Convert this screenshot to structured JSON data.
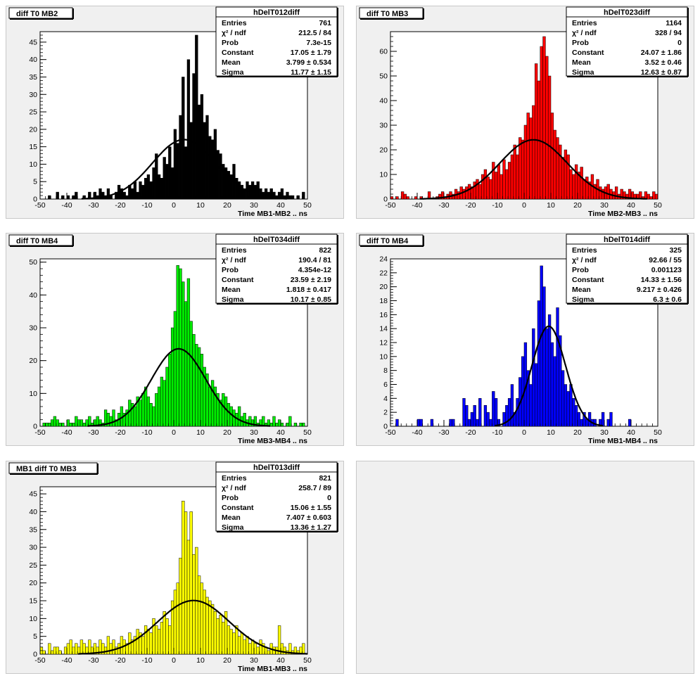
{
  "chart_data": [
    {
      "type": "bar",
      "pad_title": "diff T0 MB2",
      "stats_title": "hDelT012diff",
      "stats": [
        {
          "label": "Entries",
          "value": "761"
        },
        {
          "label": "χ² / ndf",
          "value": "212.5 / 84"
        },
        {
          "label": "Prob",
          "value": "7.3e-15"
        },
        {
          "label": "Constant",
          "value": "17.05 ± 1.79"
        },
        {
          "label": "Mean",
          "value": "3.799 ± 0.534"
        },
        {
          "label": "Sigma",
          "value": "11.77 ± 1.15"
        }
      ],
      "xlabel": "Time MB1-MB2  ..  ns",
      "xlim": [
        -50,
        50
      ],
      "ylim": [
        0,
        48
      ],
      "yticks": [
        0,
        5,
        10,
        15,
        20,
        25,
        30,
        35,
        40,
        45
      ],
      "xticks": [
        -50,
        -40,
        -30,
        -20,
        -10,
        0,
        10,
        20,
        30,
        40,
        50
      ],
      "color": "#000000",
      "fit": {
        "constant": 17.05,
        "mean": 3.799,
        "sigma": 11.77
      },
      "bin_width": 1,
      "values": [
        0,
        0,
        0,
        1,
        0,
        0,
        2,
        0,
        1,
        0,
        1,
        0,
        1,
        2,
        0,
        0,
        1,
        0,
        2,
        0,
        2,
        1,
        3,
        2,
        1,
        3,
        1,
        0,
        2,
        4,
        3,
        2,
        1,
        4,
        3,
        5,
        2,
        5,
        4,
        6,
        7,
        5,
        9,
        13,
        7,
        6,
        12,
        10,
        15,
        9,
        20,
        16,
        24,
        35,
        15,
        40,
        22,
        36,
        47,
        27,
        30,
        22,
        24,
        18,
        17,
        20,
        14,
        13,
        10,
        9,
        8,
        7,
        10,
        6,
        5,
        4,
        3,
        5,
        4,
        5,
        4,
        5,
        3,
        2,
        3,
        2,
        3,
        2,
        1,
        2,
        3,
        1,
        2,
        1,
        1,
        0,
        1,
        0,
        2,
        0
      ]
    },
    {
      "type": "bar",
      "pad_title": "diff T0 MB3",
      "stats_title": "hDelT023diff",
      "stats": [
        {
          "label": "Entries",
          "value": "1164"
        },
        {
          "label": "χ² / ndf",
          "value": "328 / 94"
        },
        {
          "label": "Prob",
          "value": "0"
        },
        {
          "label": "Constant",
          "value": "24.07 ± 1.86"
        },
        {
          "label": "Mean",
          "value": "3.52 ± 0.46"
        },
        {
          "label": "Sigma",
          "value": "12.63 ± 0.87"
        }
      ],
      "xlabel": "Time MB2-MB3  ..  ns",
      "xlim": [
        -50,
        50
      ],
      "ylim": [
        0,
        68
      ],
      "yticks": [
        0,
        10,
        20,
        30,
        40,
        50,
        60
      ],
      "xticks": [
        -50,
        -40,
        -30,
        -20,
        -10,
        0,
        10,
        20,
        30,
        40,
        50
      ],
      "color": "#ff0000",
      "fit": {
        "constant": 24.07,
        "mean": 3.52,
        "sigma": 12.63
      },
      "bin_width": 1,
      "values": [
        1,
        0,
        1,
        0,
        3,
        2,
        1,
        0,
        0,
        1,
        0,
        1,
        0,
        0,
        3,
        0,
        0,
        1,
        2,
        3,
        1,
        2,
        3,
        2,
        4,
        3,
        5,
        4,
        5,
        6,
        5,
        7,
        8,
        6,
        10,
        12,
        9,
        8,
        15,
        11,
        14,
        10,
        16,
        12,
        15,
        18,
        22,
        18,
        25,
        24,
        30,
        35,
        33,
        38,
        55,
        48,
        62,
        66,
        58,
        50,
        35,
        28,
        25,
        22,
        17,
        20,
        18,
        12,
        10,
        14,
        11,
        13,
        8,
        9,
        7,
        10,
        6,
        8,
        5,
        4,
        5,
        6,
        4,
        3,
        5,
        2,
        4,
        3,
        2,
        4,
        3,
        2,
        2,
        3,
        1,
        3,
        2,
        1,
        3,
        2
      ]
    },
    {
      "type": "bar",
      "pad_title": "diff T0 MB4",
      "stats_title": "hDelT034diff",
      "stats": [
        {
          "label": "Entries",
          "value": "822"
        },
        {
          "label": "χ² / ndf",
          "value": "190.4 / 81"
        },
        {
          "label": "Prob",
          "value": "4.354e-12"
        },
        {
          "label": "Constant",
          "value": "23.59 ± 2.19"
        },
        {
          "label": "Mean",
          "value": "1.818 ± 0.417"
        },
        {
          "label": "Sigma",
          "value": "10.17 ± 0.85"
        }
      ],
      "xlabel": "Time MB3-MB4  ..  ns",
      "xlim": [
        -50,
        50
      ],
      "ylim": [
        0,
        51
      ],
      "yticks": [
        0,
        10,
        20,
        30,
        40,
        50
      ],
      "xticks": [
        -50,
        -40,
        -30,
        -20,
        -10,
        0,
        10,
        20,
        30,
        40,
        50
      ],
      "color": "#00ee00",
      "fit": {
        "constant": 23.59,
        "mean": 1.818,
        "sigma": 10.17
      },
      "bin_width": 1,
      "values": [
        0,
        1,
        1,
        1,
        2,
        3,
        2,
        1,
        1,
        0,
        2,
        1,
        1,
        3,
        2,
        2,
        1,
        2,
        3,
        1,
        2,
        3,
        2,
        1,
        5,
        4,
        3,
        5,
        2,
        4,
        6,
        4,
        5,
        8,
        7,
        6,
        9,
        8,
        10,
        12,
        9,
        7,
        6,
        10,
        12,
        15,
        14,
        18,
        22,
        30,
        35,
        49,
        48,
        44,
        38,
        45,
        32,
        28,
        25,
        24,
        22,
        18,
        16,
        12,
        14,
        12,
        10,
        8,
        10,
        9,
        7,
        6,
        5,
        4,
        6,
        3,
        4,
        2,
        3,
        2,
        3,
        1,
        2,
        3,
        1,
        2,
        1,
        3,
        1,
        2,
        1,
        0,
        1,
        3,
        0,
        1,
        0,
        1,
        1,
        0
      ]
    },
    {
      "type": "bar",
      "pad_title": "diff T0 MB4",
      "stats_title": "hDelT014diff",
      "stats": [
        {
          "label": "Entries",
          "value": "325"
        },
        {
          "label": "χ² / ndf",
          "value": "92.66 / 55"
        },
        {
          "label": "Prob",
          "value": "0.001123"
        },
        {
          "label": "Constant",
          "value": "14.33 ± 1.56"
        },
        {
          "label": "Mean",
          "value": "9.217 ± 0.426"
        },
        {
          "label": "Sigma",
          "value": "6.3 ± 0.6"
        }
      ],
      "xlabel": "Time MB1-MB4  ..  ns",
      "xlim": [
        -50,
        50
      ],
      "ylim": [
        0,
        24
      ],
      "yticks": [
        0,
        2,
        4,
        6,
        8,
        10,
        12,
        14,
        16,
        18,
        20,
        22,
        24
      ],
      "xticks": [
        -50,
        -40,
        -30,
        -20,
        -10,
        0,
        10,
        20,
        30,
        40,
        50
      ],
      "color": "#0000ff",
      "fit": {
        "constant": 14.33,
        "mean": 9.217,
        "sigma": 6.3
      },
      "bin_width": 1,
      "values": [
        0,
        0,
        1,
        0,
        0,
        0,
        0,
        0,
        0,
        0,
        1,
        1,
        0,
        0,
        0,
        1,
        0,
        0,
        0,
        0,
        0,
        0,
        1,
        1,
        0,
        0,
        0,
        4,
        3,
        1,
        2,
        3,
        1,
        4,
        0,
        3,
        2,
        1,
        5,
        4,
        1,
        0,
        2,
        3,
        4,
        6,
        2,
        4,
        7,
        10,
        12,
        8,
        6,
        14,
        9,
        18,
        23,
        20,
        14,
        16,
        12,
        10,
        17,
        13,
        8,
        6,
        5,
        6,
        4,
        3,
        2,
        1,
        2,
        1,
        2,
        1,
        1,
        0,
        1,
        2,
        0,
        1,
        2,
        0,
        0,
        0,
        0,
        0,
        0,
        1,
        0,
        0,
        0,
        0,
        0,
        0,
        0,
        0,
        0,
        0
      ]
    },
    {
      "type": "bar",
      "pad_title": "MB1 diff T0 MB3",
      "stats_title": "hDelT013diff",
      "stats": [
        {
          "label": "Entries",
          "value": "821"
        },
        {
          "label": "χ² / ndf",
          "value": "258.7 / 89"
        },
        {
          "label": "Prob",
          "value": "0"
        },
        {
          "label": "Constant",
          "value": "15.06 ± 1.55"
        },
        {
          "label": "Mean",
          "value": "7.407 ± 0.603"
        },
        {
          "label": "Sigma",
          "value": "13.36 ± 1.27"
        }
      ],
      "xlabel": "Time MB1-MB3  ..  ns",
      "xlim": [
        -50,
        50
      ],
      "ylim": [
        0,
        47
      ],
      "yticks": [
        0,
        5,
        10,
        15,
        20,
        25,
        30,
        35,
        40,
        45
      ],
      "xticks": [
        -50,
        -40,
        -30,
        -20,
        -10,
        0,
        10,
        20,
        30,
        40,
        50
      ],
      "color": "#ffff00",
      "fit": {
        "constant": 15.06,
        "mean": 7.407,
        "sigma": 13.36
      },
      "bin_width": 1,
      "values": [
        2,
        1,
        0,
        3,
        1,
        2,
        2,
        1,
        0,
        2,
        3,
        4,
        2,
        3,
        2,
        4,
        3,
        2,
        4,
        2,
        3,
        2,
        4,
        3,
        2,
        5,
        3,
        4,
        2,
        3,
        5,
        4,
        3,
        6,
        4,
        5,
        7,
        6,
        5,
        8,
        7,
        6,
        10,
        8,
        7,
        9,
        12,
        10,
        8,
        15,
        18,
        20,
        27,
        43,
        40,
        32,
        40,
        28,
        30,
        22,
        20,
        18,
        16,
        15,
        14,
        12,
        10,
        11,
        9,
        12,
        8,
        7,
        6,
        8,
        5,
        6,
        4,
        5,
        3,
        4,
        3,
        2,
        4,
        3,
        2,
        1,
        3,
        2,
        2,
        8,
        3,
        2,
        1,
        3,
        1,
        2,
        1,
        2,
        3,
        0
      ]
    }
  ]
}
